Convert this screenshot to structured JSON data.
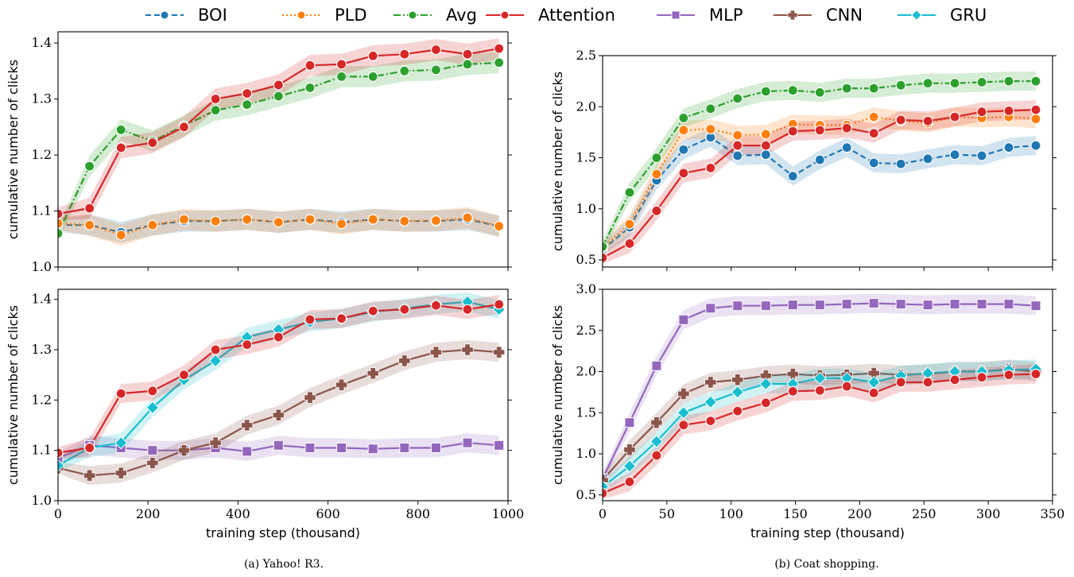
{
  "legend": [
    {
      "name": "BOI",
      "color": "#1f77b4",
      "marker": "circle",
      "dash": "7,4"
    },
    {
      "name": "PLD",
      "color": "#ff7f0e",
      "marker": "circle",
      "dash": "2,3"
    },
    {
      "name": "Avg",
      "color": "#2ca02c",
      "marker": "circle",
      "dash": "9,3,2,3"
    },
    {
      "name": "Attention",
      "color": "#d62728",
      "marker": "circle",
      "dash": ""
    },
    {
      "name": "MLP",
      "color": "#9467bd",
      "marker": "square",
      "dash": ""
    },
    {
      "name": "CNN",
      "color": "#8c564b",
      "marker": "plus",
      "dash": ""
    },
    {
      "name": "GRU",
      "color": "#17becf",
      "marker": "diamond",
      "dash": ""
    }
  ],
  "captions": {
    "left": "(a) Yahoo! R3.",
    "right": "(b) Coat shopping."
  },
  "chart_data": [
    {
      "type": "line",
      "panel": "top-left",
      "ylabel": "cumulative number of clicks",
      "xlabel": "",
      "xlim": [
        0,
        1000
      ],
      "ylim": [
        1.0,
        1.42
      ],
      "xticks": [
        0,
        200,
        400,
        600,
        800,
        1000
      ],
      "xtick_labels_shown": false,
      "yticks": [
        1.0,
        1.1,
        1.2,
        1.3,
        1.4
      ],
      "ytick_labels": [
        "1.0",
        "1.1",
        "1.2",
        "1.3",
        "1.4"
      ],
      "series": [
        {
          "name": "BOI",
          "x": [
            0,
            70,
            140,
            210,
            280,
            350,
            420,
            490,
            560,
            630,
            700,
            770,
            840,
            910,
            980
          ],
          "y": [
            1.075,
            1.075,
            1.062,
            1.075,
            1.082,
            1.082,
            1.085,
            1.08,
            1.085,
            1.08,
            1.085,
            1.082,
            1.082,
            1.085,
            1.073
          ]
        },
        {
          "name": "PLD",
          "x": [
            0,
            70,
            140,
            210,
            280,
            350,
            420,
            490,
            560,
            630,
            700,
            770,
            840,
            910,
            980
          ],
          "y": [
            1.078,
            1.075,
            1.057,
            1.075,
            1.085,
            1.082,
            1.085,
            1.08,
            1.085,
            1.077,
            1.085,
            1.082,
            1.083,
            1.088,
            1.073
          ]
        },
        {
          "name": "Avg",
          "x": [
            0,
            70,
            140,
            210,
            280,
            350,
            420,
            490,
            560,
            630,
            700,
            770,
            840,
            910,
            980
          ],
          "y": [
            1.06,
            1.18,
            1.245,
            1.225,
            1.252,
            1.28,
            1.29,
            1.305,
            1.32,
            1.34,
            1.34,
            1.35,
            1.352,
            1.362,
            1.365
          ]
        },
        {
          "name": "Attention",
          "x": [
            0,
            70,
            140,
            210,
            280,
            350,
            420,
            490,
            560,
            630,
            700,
            770,
            840,
            910,
            980
          ],
          "y": [
            1.095,
            1.105,
            1.213,
            1.222,
            1.25,
            1.3,
            1.31,
            1.325,
            1.36,
            1.362,
            1.377,
            1.38,
            1.388,
            1.38,
            1.39
          ]
        }
      ]
    },
    {
      "type": "line",
      "panel": "bottom-left",
      "ylabel": "cumulative number of clicks",
      "xlabel": "training step (thousand)",
      "xlim": [
        0,
        1000
      ],
      "ylim": [
        1.0,
        1.42
      ],
      "xticks": [
        0,
        200,
        400,
        600,
        800,
        1000
      ],
      "xtick_labels": [
        "0",
        "200",
        "400",
        "600",
        "800",
        "1000"
      ],
      "yticks": [
        1.0,
        1.1,
        1.2,
        1.3,
        1.4
      ],
      "ytick_labels": [
        "1.0",
        "1.1",
        "1.2",
        "1.3",
        "1.4"
      ],
      "series": [
        {
          "name": "MLP",
          "x": [
            0,
            70,
            140,
            210,
            280,
            350,
            420,
            490,
            560,
            630,
            700,
            770,
            840,
            910,
            980
          ],
          "y": [
            1.085,
            1.11,
            1.105,
            1.1,
            1.1,
            1.105,
            1.098,
            1.11,
            1.105,
            1.105,
            1.103,
            1.105,
            1.105,
            1.115,
            1.11
          ]
        },
        {
          "name": "CNN",
          "x": [
            0,
            70,
            140,
            210,
            280,
            350,
            420,
            490,
            560,
            630,
            700,
            770,
            840,
            910,
            980
          ],
          "y": [
            1.065,
            1.05,
            1.055,
            1.075,
            1.1,
            1.115,
            1.15,
            1.17,
            1.205,
            1.23,
            1.253,
            1.278,
            1.295,
            1.3,
            1.295
          ]
        },
        {
          "name": "GRU",
          "x": [
            0,
            70,
            140,
            210,
            280,
            350,
            420,
            490,
            560,
            630,
            700,
            770,
            840,
            910,
            980
          ],
          "y": [
            1.07,
            1.105,
            1.115,
            1.185,
            1.24,
            1.278,
            1.325,
            1.34,
            1.355,
            1.362,
            1.375,
            1.382,
            1.39,
            1.395,
            1.38
          ]
        },
        {
          "name": "Attention",
          "x": [
            0,
            70,
            140,
            210,
            280,
            350,
            420,
            490,
            560,
            630,
            700,
            770,
            840,
            910,
            980
          ],
          "y": [
            1.095,
            1.105,
            1.213,
            1.218,
            1.25,
            1.3,
            1.31,
            1.325,
            1.36,
            1.362,
            1.377,
            1.38,
            1.388,
            1.38,
            1.39
          ]
        }
      ]
    },
    {
      "type": "line",
      "panel": "top-right",
      "ylabel": "cumulative number of clicks",
      "xlabel": "",
      "xlim": [
        0,
        350
      ],
      "ylim": [
        0.43,
        2.5
      ],
      "xticks": [
        0,
        50,
        100,
        150,
        200,
        250,
        300,
        350
      ],
      "xtick_labels_shown": false,
      "yticks": [
        0.5,
        1.0,
        1.5,
        2.0,
        2.5
      ],
      "ytick_labels": [
        "0.5",
        "1.0",
        "1.5",
        "2.0",
        "2.5"
      ],
      "series": [
        {
          "name": "BOI",
          "x": [
            0,
            21,
            42,
            63,
            84,
            105,
            127,
            148,
            169,
            190,
            211,
            232,
            253,
            274,
            295,
            316,
            337
          ],
          "y": [
            0.6,
            0.82,
            1.28,
            1.58,
            1.7,
            1.52,
            1.53,
            1.32,
            1.48,
            1.6,
            1.45,
            1.44,
            1.49,
            1.53,
            1.52,
            1.6,
            1.62
          ]
        },
        {
          "name": "PLD",
          "x": [
            0,
            21,
            42,
            63,
            84,
            105,
            127,
            148,
            169,
            190,
            211,
            232,
            253,
            274,
            295,
            316,
            337
          ],
          "y": [
            0.62,
            0.85,
            1.34,
            1.77,
            1.78,
            1.72,
            1.73,
            1.83,
            1.82,
            1.82,
            1.9,
            1.86,
            1.84,
            1.9,
            1.89,
            1.9,
            1.88
          ]
        },
        {
          "name": "Avg",
          "x": [
            0,
            21,
            42,
            63,
            84,
            105,
            127,
            148,
            169,
            190,
            211,
            232,
            253,
            274,
            295,
            316,
            337
          ],
          "y": [
            0.63,
            1.16,
            1.5,
            1.89,
            1.98,
            2.08,
            2.15,
            2.16,
            2.14,
            2.18,
            2.18,
            2.21,
            2.23,
            2.23,
            2.24,
            2.25,
            2.25
          ]
        },
        {
          "name": "Attention",
          "x": [
            0,
            21,
            42,
            63,
            84,
            105,
            127,
            148,
            169,
            190,
            211,
            232,
            253,
            274,
            295,
            316,
            337
          ],
          "y": [
            0.52,
            0.66,
            0.98,
            1.35,
            1.4,
            1.62,
            1.62,
            1.76,
            1.77,
            1.79,
            1.74,
            1.87,
            1.86,
            1.9,
            1.95,
            1.96,
            1.97
          ]
        }
      ]
    },
    {
      "type": "line",
      "panel": "bottom-right",
      "ylabel": "cumulative number of clicks",
      "xlabel": "training step (thousand)",
      "xlim": [
        0,
        350
      ],
      "ylim": [
        0.43,
        3.0
      ],
      "xticks": [
        0,
        50,
        100,
        150,
        200,
        250,
        300,
        350
      ],
      "xtick_labels": [
        "0",
        "50",
        "100",
        "150",
        "200",
        "250",
        "300",
        "350"
      ],
      "yticks": [
        0.5,
        1.0,
        1.5,
        2.0,
        2.5,
        3.0
      ],
      "ytick_labels": [
        "0.5",
        "1.0",
        "1.5",
        "2.0",
        "2.5",
        "3.0"
      ],
      "series": [
        {
          "name": "MLP",
          "x": [
            0,
            21,
            42,
            63,
            84,
            105,
            127,
            148,
            169,
            190,
            211,
            232,
            253,
            274,
            295,
            316,
            337
          ],
          "y": [
            0.7,
            1.38,
            2.07,
            2.63,
            2.77,
            2.8,
            2.8,
            2.81,
            2.81,
            2.82,
            2.83,
            2.82,
            2.81,
            2.82,
            2.82,
            2.82,
            2.8
          ]
        },
        {
          "name": "CNN",
          "x": [
            0,
            21,
            42,
            63,
            84,
            105,
            127,
            148,
            169,
            190,
            211,
            232,
            253,
            274,
            295,
            316,
            337
          ],
          "y": [
            0.68,
            1.05,
            1.38,
            1.73,
            1.87,
            1.9,
            1.95,
            1.97,
            1.95,
            1.96,
            1.98,
            1.96,
            1.97,
            2.0,
            2.0,
            2.03,
            2.0
          ]
        },
        {
          "name": "GRU",
          "x": [
            0,
            21,
            42,
            63,
            84,
            105,
            127,
            148,
            169,
            190,
            211,
            232,
            253,
            274,
            295,
            316,
            337
          ],
          "y": [
            0.6,
            0.85,
            1.15,
            1.5,
            1.63,
            1.75,
            1.85,
            1.85,
            1.92,
            1.92,
            1.87,
            1.95,
            1.98,
            2.0,
            2.0,
            2.02,
            2.03
          ]
        },
        {
          "name": "Attention",
          "x": [
            0,
            21,
            42,
            63,
            84,
            105,
            127,
            148,
            169,
            190,
            211,
            232,
            253,
            274,
            295,
            316,
            337
          ],
          "y": [
            0.52,
            0.66,
            0.98,
            1.35,
            1.4,
            1.52,
            1.62,
            1.76,
            1.77,
            1.82,
            1.74,
            1.87,
            1.87,
            1.9,
            1.93,
            1.96,
            1.97
          ]
        }
      ]
    }
  ]
}
